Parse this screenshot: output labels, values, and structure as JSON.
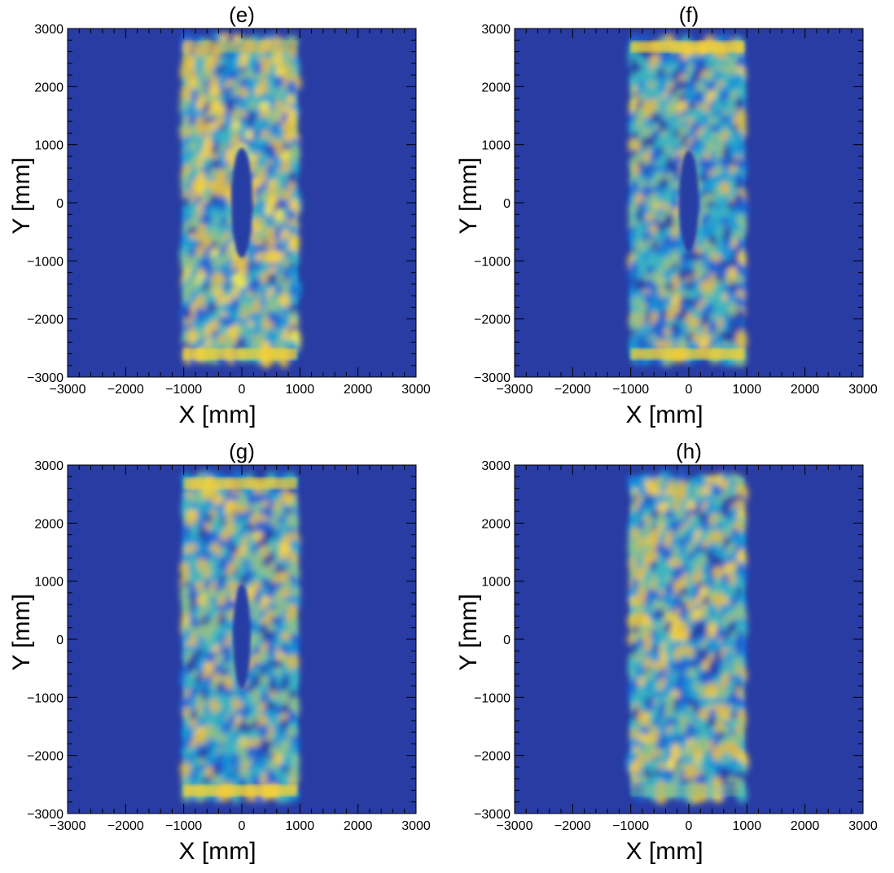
{
  "figure": {
    "colors": {
      "background": "#283ca4",
      "colormap": [
        "#283ca4",
        "#1e64d2",
        "#1496d6",
        "#3cb4c0",
        "#8cc08a",
        "#d6b84a",
        "#f4d232",
        "#faf014"
      ]
    }
  },
  "chart_data": [
    {
      "type": "heatmap",
      "title": "(e)",
      "xlabel": "X [mm]",
      "ylabel": "Y [mm]",
      "xlim": [
        -3000,
        3000
      ],
      "ylim": [
        -3000,
        3000
      ],
      "xticks": [
        "−3000",
        "−2000",
        "−1000",
        "0",
        "1000",
        "2000",
        "3000"
      ],
      "yticks": [
        "−3000",
        "−2000",
        "−1000",
        "0",
        "1000",
        "2000",
        "3000"
      ],
      "grid": false,
      "legend": "none",
      "region": {
        "x": [
          -1000,
          950
        ],
        "y": [
          -2700,
          2780
        ]
      },
      "void": {
        "x_center": 0,
        "y": [
          -950,
          950
        ],
        "half_width": 180
      },
      "edge_bands": {
        "top": 0.35,
        "bottom": 0.65
      },
      "mean_level": 0.48,
      "seed": 11
    },
    {
      "type": "heatmap",
      "title": "(f)",
      "xlabel": "X [mm]",
      "ylabel": "Y [mm]",
      "xlim": [
        -3000,
        3000
      ],
      "ylim": [
        -3000,
        3000
      ],
      "xticks": [
        "−3000",
        "−2000",
        "−1000",
        "0",
        "1000",
        "2000",
        "3000"
      ],
      "yticks": [
        "−3000",
        "−2000",
        "−1000",
        "0",
        "1000",
        "2000",
        "3000"
      ],
      "grid": false,
      "legend": "none",
      "region": {
        "x": [
          -1000,
          950
        ],
        "y": [
          -2700,
          2780
        ]
      },
      "void": {
        "x_center": 0,
        "y": [
          -850,
          900
        ],
        "half_width": 170
      },
      "edge_bands": {
        "top": 0.75,
        "bottom": 0.7
      },
      "mean_level": 0.36,
      "seed": 23
    },
    {
      "type": "heatmap",
      "title": "(g)",
      "xlabel": "X [mm]",
      "ylabel": "Y [mm]",
      "xlim": [
        -3000,
        3000
      ],
      "ylim": [
        -3000,
        3000
      ],
      "xticks": [
        "−3000",
        "−2000",
        "−1000",
        "0",
        "1000",
        "2000",
        "3000"
      ],
      "yticks": [
        "−3000",
        "−2000",
        "−1000",
        "0",
        "1000",
        "2000",
        "3000"
      ],
      "grid": false,
      "legend": "none",
      "region": {
        "x": [
          -1000,
          950
        ],
        "y": [
          -2700,
          2780
        ]
      },
      "void": {
        "x_center": 0,
        "y": [
          -850,
          950
        ],
        "half_width": 150
      },
      "edge_bands": {
        "top": 0.6,
        "bottom": 0.75
      },
      "mean_level": 0.4,
      "seed": 37
    },
    {
      "type": "heatmap",
      "title": "(h)",
      "xlabel": "X [mm]",
      "ylabel": "Y [mm]",
      "xlim": [
        -3000,
        3000
      ],
      "ylim": [
        -3000,
        3000
      ],
      "xticks": [
        "−3000",
        "−2000",
        "−1000",
        "0",
        "1000",
        "2000",
        "3000"
      ],
      "yticks": [
        "−3000",
        "−2000",
        "−1000",
        "0",
        "1000",
        "2000",
        "3000"
      ],
      "grid": false,
      "legend": "none",
      "region": {
        "x": [
          -1000,
          950
        ],
        "y": [
          -2700,
          2780
        ]
      },
      "void": null,
      "edge_bands": {
        "top": 0.05,
        "bottom": 0.15
      },
      "mean_level": 0.42,
      "seed": 53
    }
  ]
}
